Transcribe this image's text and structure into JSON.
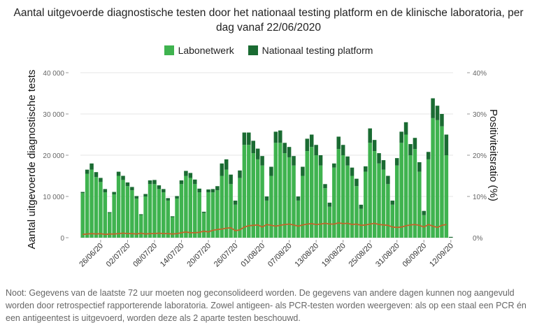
{
  "title_line1": "Aantal uitgevoerde diagnostische testen door het nationaal testing platform en de klinische laboratoria, per",
  "title_line2": "dag vanaf 22/06/2020",
  "legend": [
    {
      "label": "Labonetwerk",
      "color": "#3fb34f"
    },
    {
      "label": "Nationaal testing platform",
      "color": "#1a6b32"
    }
  ],
  "note_line1": "Noot: Gegevens van de laatste 72 uur moeten nog geconsolideerd worden. De gegevens van andere dagen kunnen nog aangevuld",
  "note_line2": "worden door retrospectief rapporterende laboratoria. Zowel antigeen- als PCR-testen worden weergeven: als op een staal een PCR én",
  "note_line3": "een antigeentest is uitgevoerd, worden deze als 2 aparte testen beschouwd.",
  "chart_data": {
    "type": "bar",
    "stacked": true,
    "ylabel": "Aantal uitgevoerde diagnostische tests",
    "y2label": "Positiviteitsratio (%)",
    "ylim": [
      0,
      40000
    ],
    "y2lim": [
      0,
      40
    ],
    "yticks": [
      "0",
      "10 000",
      "20 000",
      "30 000",
      "40 000"
    ],
    "y2ticks": [
      "0%",
      "10%",
      "20%",
      "30%",
      "40%"
    ],
    "x_ticks": [
      "26/06/20",
      "02/07/20",
      "08/07/20",
      "14/07/20",
      "20/07/20",
      "26/07/20",
      "01/08/20",
      "07/08/20",
      "13/08/20",
      "19/08/20",
      "25/08/20",
      "31/08/20",
      "06/09/20",
      "12/09/20"
    ],
    "x_tick_day_index": [
      4,
      10,
      16,
      22,
      28,
      34,
      40,
      46,
      52,
      58,
      64,
      70,
      76,
      82
    ],
    "start_date": "22/06/20",
    "line_color": "#c0652a",
    "series": [
      {
        "name": "Labonetwerk",
        "color": "#3fb34f",
        "values": [
          10800,
          15500,
          16500,
          14700,
          13500,
          11000,
          6000,
          10500,
          15000,
          14000,
          12500,
          11500,
          9500,
          5500,
          10000,
          13000,
          13000,
          11800,
          11000,
          9000,
          5000,
          9500,
          13000,
          15000,
          14500,
          13000,
          11000,
          6000,
          11000,
          11000,
          11500,
          15000,
          16500,
          13000,
          8000,
          14500,
          22500,
          22500,
          20500,
          19000,
          17500,
          9000,
          15000,
          23000,
          23000,
          20500,
          19500,
          17500,
          9000,
          15000,
          21000,
          22000,
          20000,
          17500,
          12000,
          7500,
          17000,
          21500,
          20000,
          17500,
          15000,
          12500,
          7000,
          16000,
          23000,
          21000,
          18000,
          16500,
          13000,
          8000,
          17500,
          23000,
          25000,
          20000,
          21500,
          16000,
          5500,
          19000,
          29000,
          28500,
          27000,
          20000,
          0
        ]
      },
      {
        "name": "Nationaal testing platform",
        "color": "#1a6b32",
        "values": [
          300,
          1000,
          1500,
          1200,
          1000,
          800,
          200,
          600,
          1000,
          1000,
          900,
          800,
          600,
          200,
          600,
          900,
          1000,
          900,
          800,
          600,
          200,
          600,
          900,
          1200,
          1200,
          1100,
          900,
          300,
          700,
          800,
          1000,
          3000,
          2500,
          2300,
          1000,
          1800,
          3000,
          3000,
          3000,
          2600,
          2300,
          1000,
          2200,
          2700,
          3000,
          2500,
          2500,
          2300,
          1000,
          2200,
          3000,
          3000,
          2500,
          2500,
          1000,
          1000,
          1000,
          3000,
          2500,
          2200,
          2000,
          1800,
          1000,
          1300,
          3500,
          2700,
          2500,
          2300,
          2000,
          1000,
          1800,
          2700,
          3000,
          2700,
          2700,
          2300,
          1000,
          1800,
          4800,
          3500,
          3000,
          5000,
          200
        ]
      }
    ],
    "positivity_pct": [
      0.8,
      0.9,
      1.0,
      0.9,
      1.0,
      0.8,
      0.9,
      0.9,
      1.0,
      1.1,
      1.0,
      1.0,
      0.9,
      1.1,
      0.9,
      1.0,
      1.0,
      1.1,
      1.0,
      1.0,
      0.9,
      1.0,
      1.2,
      1.4,
      1.2,
      1.2,
      1.3,
      1.6,
      1.4,
      1.8,
      2.0,
      2.1,
      2.3,
      2.4,
      1.7,
      1.9,
      2.6,
      2.9,
      3.0,
      3.1,
      2.6,
      3.2,
      3.0,
      2.8,
      3.0,
      3.2,
      3.3,
      3.1,
      2.8,
      3.1,
      3.3,
      3.4,
      3.2,
      3.3,
      3.5,
      3.3,
      3.3,
      3.6,
      3.4,
      3.5,
      3.2,
      3.3,
      3.0,
      3.1,
      3.3,
      3.5,
      3.2,
      3.1,
      3.0,
      2.6,
      2.5,
      2.6,
      2.9,
      3.1,
      3.2,
      3.0,
      2.6,
      3.2,
      2.8,
      2.5,
      3.0,
      3.2
    ]
  }
}
